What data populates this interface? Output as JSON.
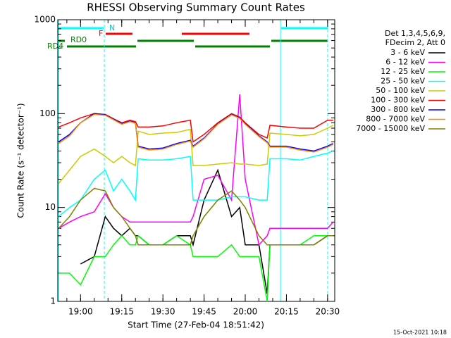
{
  "chart_data": {
    "type": "line",
    "title": "RHESSI Observing Summary Count Rates",
    "x_label": "Start Time (27-Feb-04 18:51:42)",
    "y_label": "Count Rate (s⁻¹ detector⁻¹)",
    "legend_header": [
      "Det 1,3,4,5,6,9,",
      "FDecim 2, Att 0"
    ],
    "annotations": [
      "N",
      "F",
      "RD0",
      "RD4"
    ],
    "footer": "15-Oct-2021 10:18",
    "log_y": true,
    "xlim": [
      1131.7,
      1232.6
    ],
    "xticks": [
      {
        "value": 1140,
        "label": "19:00"
      },
      {
        "value": 1155,
        "label": "19:15"
      },
      {
        "value": 1170,
        "label": "19:30"
      },
      {
        "value": 1185,
        "label": "19:45"
      },
      {
        "value": 1200,
        "label": "20:00"
      },
      {
        "value": 1215,
        "label": "20:15"
      },
      {
        "value": 1230,
        "label": "20:30"
      }
    ],
    "ylim": [
      1,
      1000
    ],
    "yticks": [
      1,
      10,
      100,
      1000
    ],
    "x": [
      1132,
      1136,
      1140,
      1145,
      1149,
      1152,
      1155,
      1158,
      1160,
      1161,
      1165,
      1170,
      1175,
      1180,
      1181,
      1185,
      1190,
      1195,
      1198,
      1200,
      1205,
      1208,
      1209,
      1215,
      1220,
      1225,
      1230,
      1232
    ],
    "series": [
      {
        "name": "3 - 6 keV",
        "color": "#000000",
        "values": [
          null,
          null,
          2.5,
          3,
          8,
          6,
          5,
          6,
          5,
          5,
          4,
          4,
          5,
          5,
          4,
          12,
          25,
          8,
          10,
          4,
          4,
          1.2,
          4,
          4,
          4,
          4,
          5,
          5
        ]
      },
      {
        "name": "6 - 12 keV",
        "color": "#ff00ff",
        "values": [
          6,
          7,
          8,
          9,
          14,
          10,
          8,
          7,
          7,
          7,
          7,
          7,
          7,
          7,
          8,
          20,
          22,
          12,
          160,
          20,
          4,
          5,
          6,
          6,
          6,
          6,
          6,
          7
        ]
      },
      {
        "name": "12 - 25 keV",
        "color": "#00ff00",
        "values": [
          2,
          2,
          1.5,
          3,
          3,
          4,
          5,
          4,
          4,
          5,
          4,
          4,
          5,
          4,
          3,
          3,
          3,
          4,
          3,
          3,
          3,
          1,
          4,
          4,
          4,
          5,
          5,
          5
        ]
      },
      {
        "name": "25 - 50 keV",
        "color": "#00ffff",
        "values": [
          8,
          10,
          12,
          20,
          25,
          15,
          20,
          15,
          12,
          33,
          32,
          32,
          33,
          35,
          12,
          12,
          12,
          13,
          13,
          13,
          12,
          12,
          33,
          33,
          32,
          35,
          38,
          40
        ]
      },
      {
        "name": "50 - 100 keV",
        "color": "#cccc00",
        "values": [
          18,
          25,
          35,
          42,
          35,
          30,
          35,
          30,
          28,
          65,
          60,
          62,
          63,
          68,
          28,
          28,
          29,
          30,
          29,
          29,
          28,
          29,
          62,
          60,
          58,
          60,
          70,
          75
        ]
      },
      {
        "name": "100 - 300 keV",
        "color": "#ff0000",
        "values": [
          72,
          80,
          90,
          100,
          98,
          88,
          80,
          85,
          82,
          72,
          72,
          74,
          80,
          85,
          50,
          60,
          80,
          100,
          92,
          80,
          60,
          55,
          75,
          72,
          70,
          70,
          85,
          85
        ]
      },
      {
        "name": "300 - 800 keV",
        "color": "#0000ff",
        "values": [
          50,
          60,
          80,
          100,
          97,
          87,
          78,
          83,
          80,
          45,
          42,
          43,
          48,
          52,
          45,
          55,
          78,
          98,
          90,
          78,
          58,
          50,
          45,
          45,
          42,
          40,
          45,
          48
        ]
      },
      {
        "name": "800 - 7000 keV",
        "color": "#ff8c00",
        "values": [
          48,
          58,
          80,
          98,
          96,
          86,
          77,
          82,
          79,
          44,
          41,
          42,
          47,
          51,
          44,
          54,
          77,
          97,
          89,
          77,
          57,
          49,
          44,
          44,
          41,
          39,
          44,
          47
        ]
      },
      {
        "name": "7000 - 15000 keV",
        "color": "#808000",
        "values": [
          6,
          8,
          12,
          16,
          15,
          10,
          8,
          6,
          5,
          4,
          4,
          4,
          4,
          4,
          5,
          8,
          12,
          15,
          12,
          10,
          5,
          4,
          4,
          4,
          4,
          4,
          5,
          5
        ]
      }
    ]
  }
}
